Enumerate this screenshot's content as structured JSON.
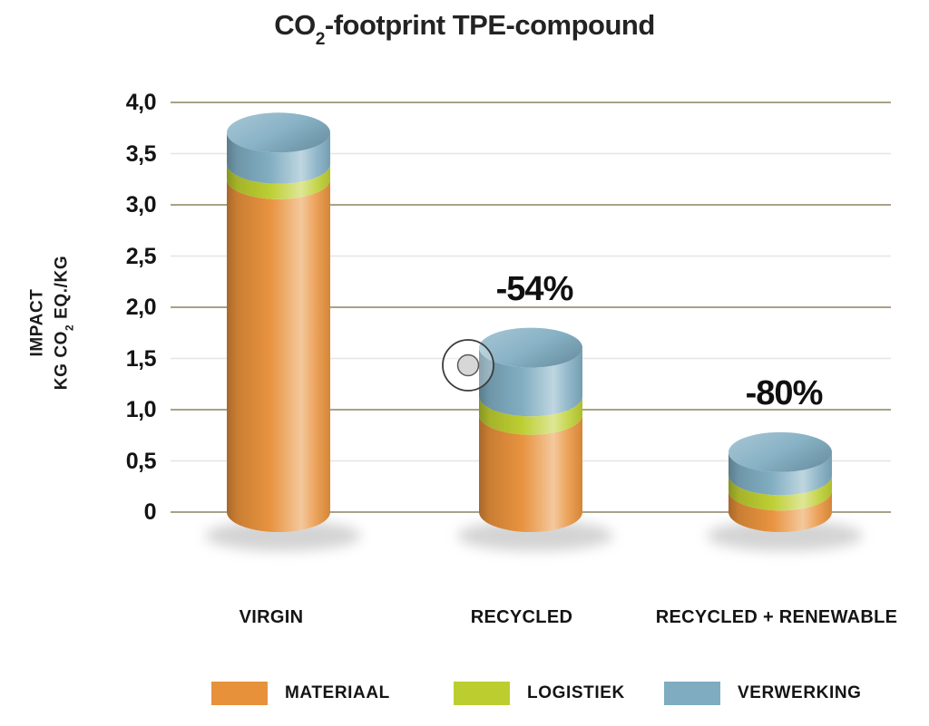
{
  "page": {
    "background": "#ffffff"
  },
  "chart_data": {
    "type": "bar",
    "variant": "3d-cylinder-stacked",
    "title": "CO2-footprint TPE-compound",
    "title_parts": {
      "pre": "CO",
      "sub": "2",
      "post": "-footprint TPE-compound"
    },
    "ylabel_line1": "IMPACT",
    "ylabel_line2": "KG CO2 EQ./KG",
    "ylabel_line2_parts": {
      "pre": "KG CO",
      "sub": "2",
      "post": " EQ./KG"
    },
    "categories": [
      "VIRGIN",
      "RECYCLED",
      "RECYCLED + RENEWABLE"
    ],
    "series": [
      {
        "name": "MATERIAAL",
        "color": "#E8913B",
        "values": [
          3.25,
          0.95,
          0.21
        ]
      },
      {
        "name": "LOGISTIEK",
        "color": "#BCCE2F",
        "values": [
          0.15,
          0.18,
          0.15
        ]
      },
      {
        "name": "VERWERKING",
        "color": "#7FACC1",
        "values": [
          0.5,
          0.67,
          0.42
        ]
      }
    ],
    "totals": [
      3.9,
      1.8,
      0.78
    ],
    "annotations": [
      {
        "category_index": 1,
        "text": "-54%"
      },
      {
        "category_index": 2,
        "text": "-80%"
      }
    ],
    "yticks": [
      {
        "label": "4,0",
        "value": 4.0
      },
      {
        "label": "3,5",
        "value": 3.5
      },
      {
        "label": "3,0",
        "value": 3.0
      },
      {
        "label": "2,5",
        "value": 2.5
      },
      {
        "label": "2,0",
        "value": 2.0
      },
      {
        "label": "1,5",
        "value": 1.5
      },
      {
        "label": "1,0",
        "value": 1.0
      },
      {
        "label": "0,5",
        "value": 0.5
      },
      {
        "label": "0",
        "value": 0
      }
    ],
    "ylim": [
      0,
      4.0
    ],
    "grid": {
      "shown": true,
      "major_color": "#A8A289",
      "minor_color": "#E6E6E1"
    },
    "legend_position": "bottom",
    "text_color": "#141414"
  },
  "overlay": {
    "click_indicator": {
      "present": true,
      "description": "target circle over left edge of RECYCLED bar top"
    }
  }
}
